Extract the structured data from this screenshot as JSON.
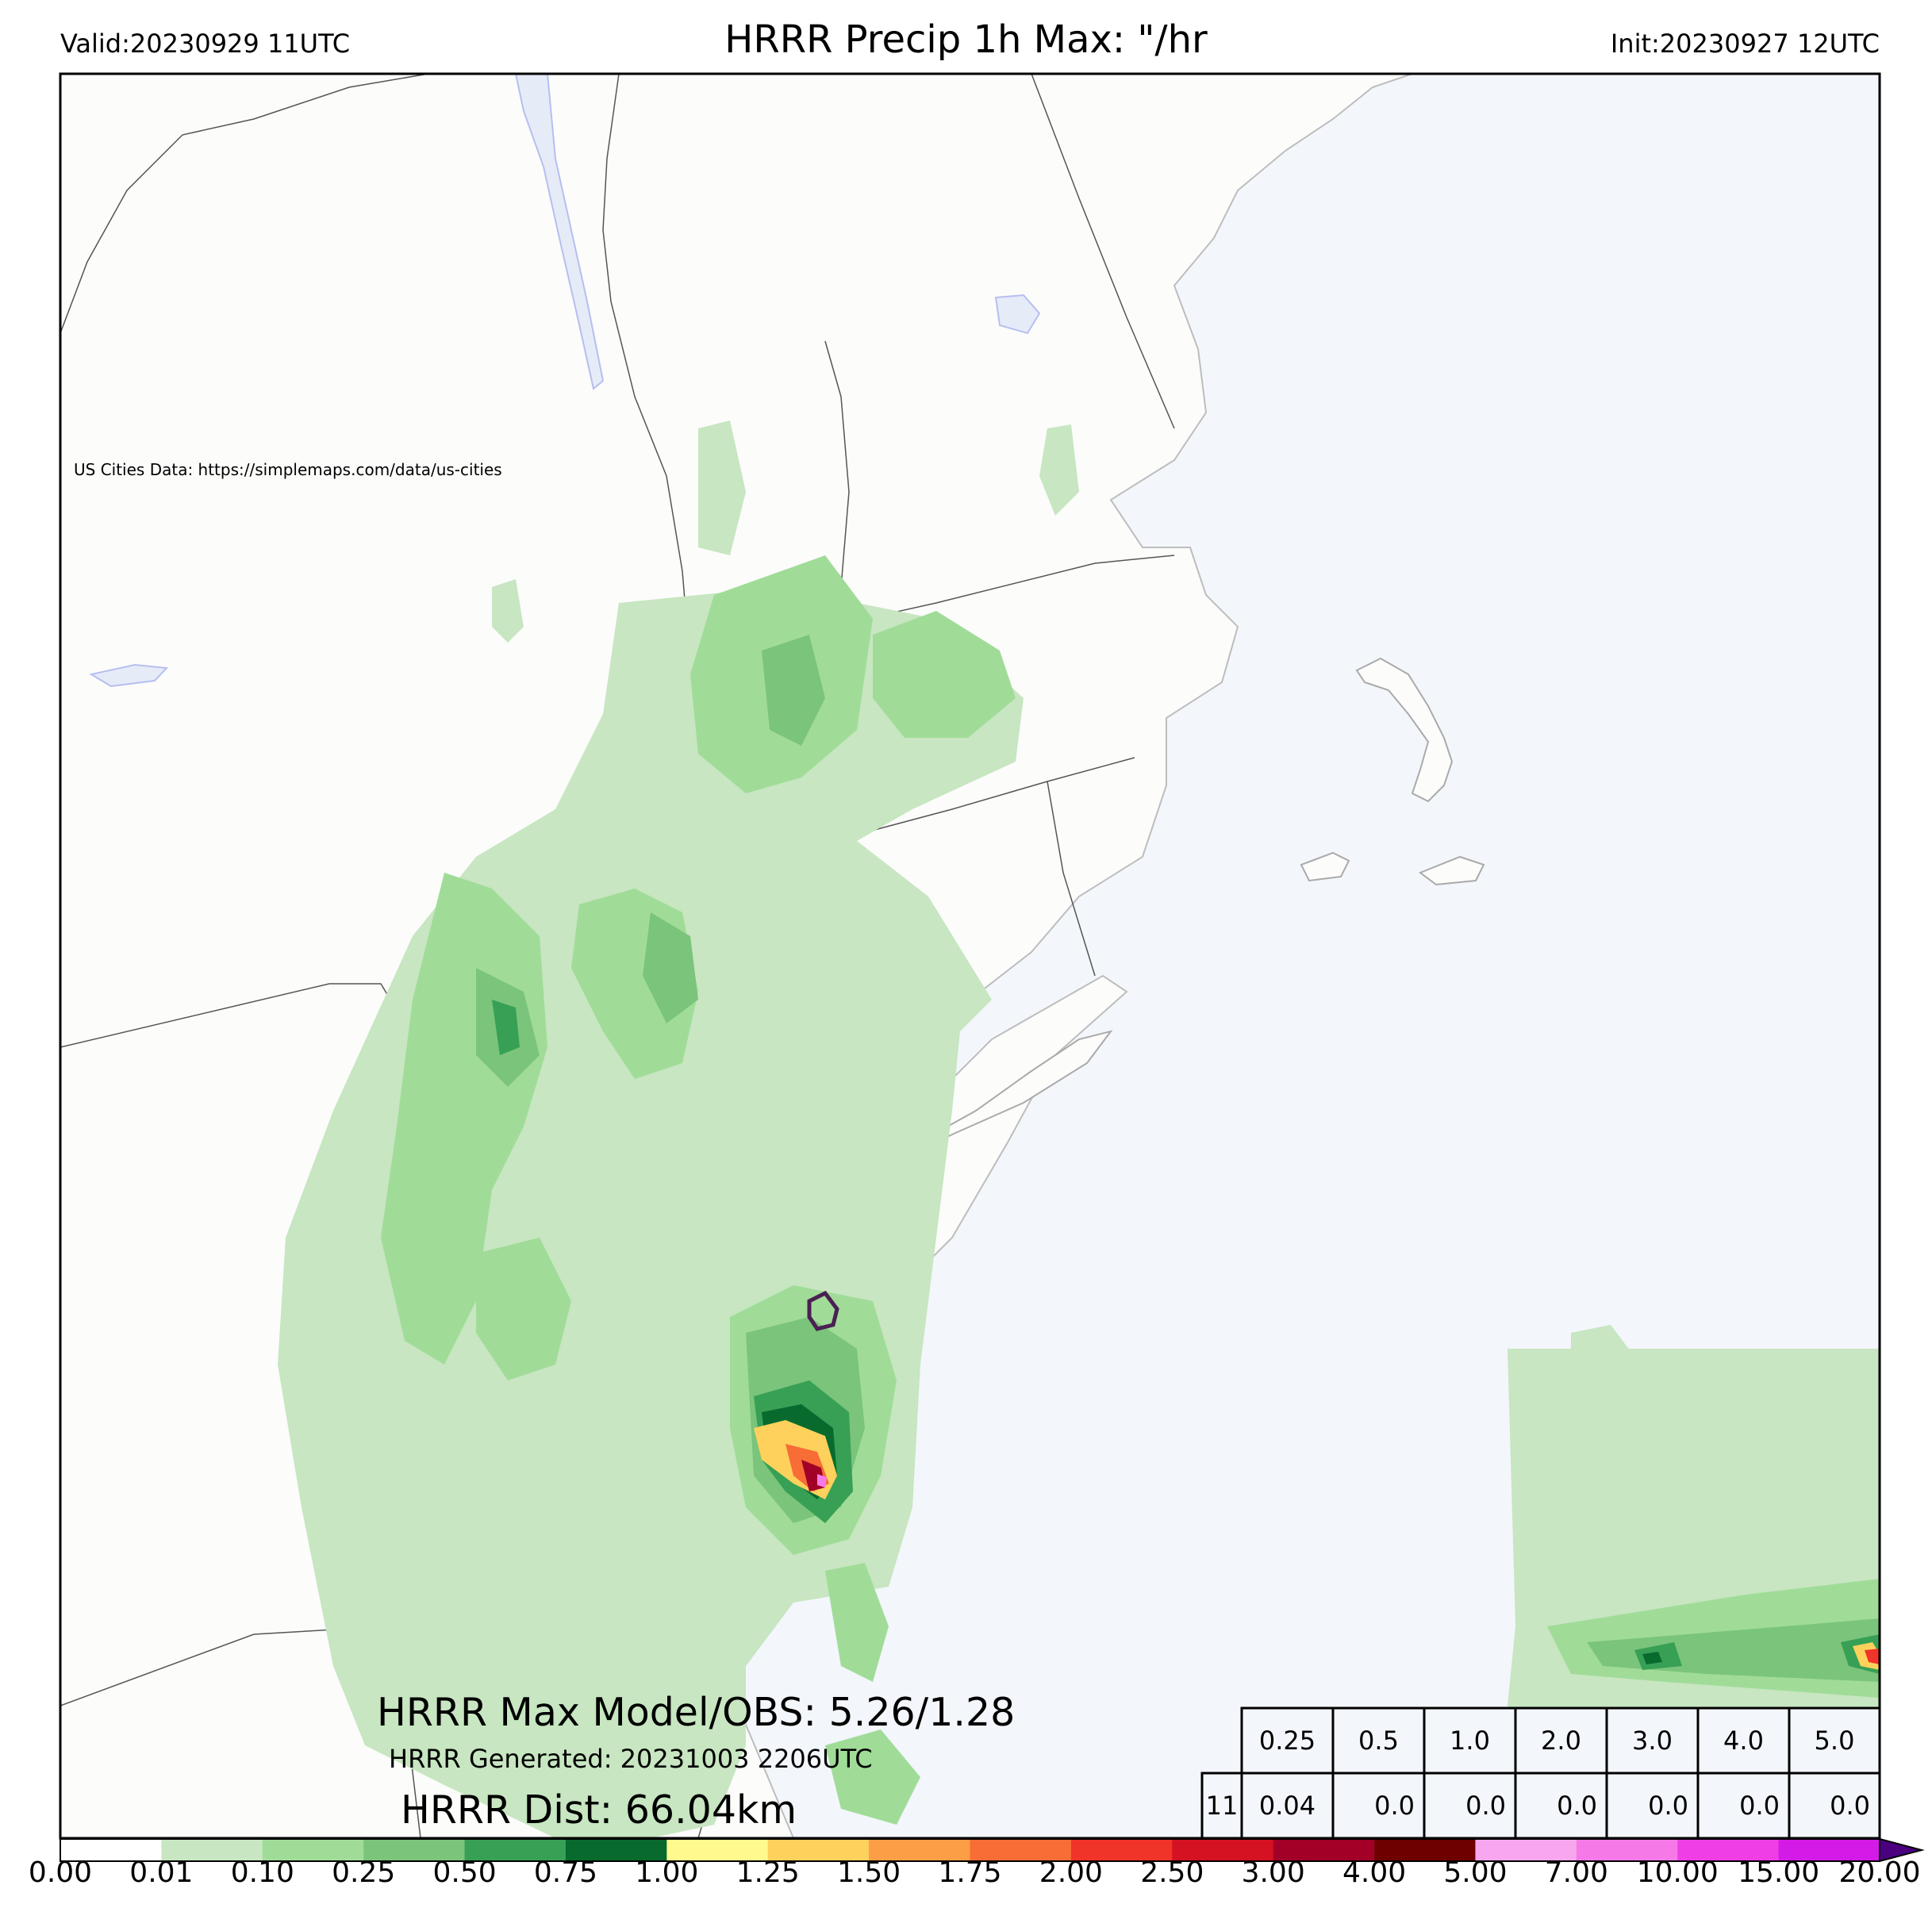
{
  "header": {
    "valid": "Valid:20230929 11UTC",
    "title": "HRRR Precip 1h Max: \"/hr",
    "init": "Init:20230927 12UTC"
  },
  "attribution": "US Cities Data: https://simplemaps.com/data/us-cities",
  "stats": {
    "max_model_obs": "HRRR Max Model/OBS: 5.26/1.28",
    "generated": "HRRR Generated: 20231003 2206UTC",
    "dist": "HRRR Dist: 66.04km"
  },
  "threshold_table": {
    "thresholds": [
      "0.25",
      "0.5",
      "1.0",
      "2.0",
      "3.0",
      "4.0",
      "5.0"
    ],
    "row_label": "11",
    "values": [
      "0.04",
      "0.0",
      "0.0",
      "0.0",
      "0.0",
      "0.0",
      "0.0"
    ]
  },
  "colorbar": {
    "labels": [
      "0.00",
      "0.01",
      "0.10",
      "0.25",
      "0.50",
      "0.75",
      "1.00",
      "1.25",
      "1.50",
      "1.75",
      "2.00",
      "2.50",
      "3.00",
      "4.00",
      "5.00",
      "7.00",
      "10.00",
      "15.00",
      "20.00"
    ],
    "colors": [
      "#ffffff",
      "#c7e6c1",
      "#a0dc98",
      "#7bc47b",
      "#37a055",
      "#096a2e",
      "#fff98e",
      "#fdd15b",
      "#fc9e45",
      "#f86c36",
      "#f0342a",
      "#d41221",
      "#a20027",
      "#6e0000",
      "#f8a7ee",
      "#f57ae8",
      "#f03ee6",
      "#d41ae6",
      "#9511d2"
    ],
    "extend_color": "#4b0080"
  },
  "map_colors": {
    "land": "#fcfcfb",
    "ocean": "#f3f6fb",
    "lake": "#e6ebf8",
    "boundary": "#555555",
    "precip_light": "#c7e6c1",
    "precip_mid": "#a0dc98",
    "precip_25": "#7bc47b",
    "precip_50": "#37a055",
    "precip_75": "#096a2e",
    "obs_contour": "#4b2054"
  }
}
